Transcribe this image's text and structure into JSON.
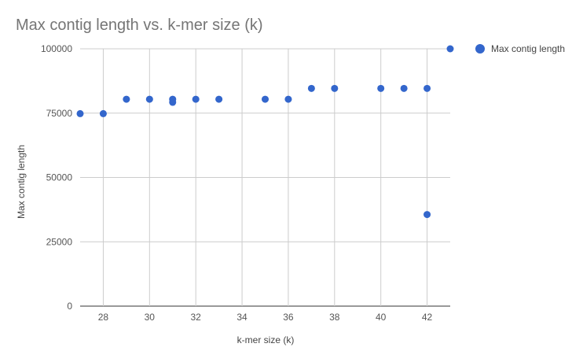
{
  "chart_data": {
    "type": "scatter",
    "title": "Max contig length vs. k-mer size (k)",
    "xlabel": "k-mer size (k)",
    "ylabel": "Max contig length",
    "xlim": [
      27,
      43
    ],
    "ylim": [
      0,
      100000
    ],
    "x_ticks": [
      28,
      30,
      32,
      34,
      36,
      38,
      40,
      42
    ],
    "y_ticks": [
      0,
      25000,
      50000,
      75000,
      100000
    ],
    "grid": true,
    "legend_position": "right",
    "series": [
      {
        "name": "Max contig length",
        "color": "#3366cc",
        "points": [
          {
            "x": 27,
            "y": 74800
          },
          {
            "x": 28,
            "y": 74800
          },
          {
            "x": 29,
            "y": 80400
          },
          {
            "x": 30,
            "y": 80400
          },
          {
            "x": 31,
            "y": 80400
          },
          {
            "x": 31,
            "y": 79200
          },
          {
            "x": 32,
            "y": 80400
          },
          {
            "x": 33,
            "y": 80400
          },
          {
            "x": 35,
            "y": 80400
          },
          {
            "x": 36,
            "y": 80400
          },
          {
            "x": 37,
            "y": 84600
          },
          {
            "x": 38,
            "y": 84600
          },
          {
            "x": 40,
            "y": 84600
          },
          {
            "x": 41,
            "y": 84600
          },
          {
            "x": 42,
            "y": 84600
          },
          {
            "x": 42,
            "y": 35600
          },
          {
            "x": 43,
            "y": 100000
          }
        ]
      }
    ]
  }
}
